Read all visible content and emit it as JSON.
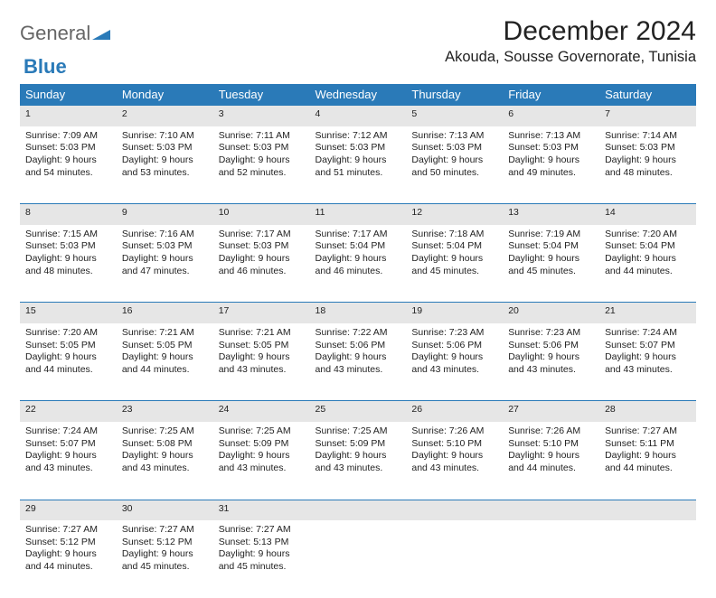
{
  "logo": {
    "prefix": "General",
    "suffix": "Blue"
  },
  "title": "December 2024",
  "location": "Akouda, Sousse Governorate, Tunisia",
  "headers": [
    "Sunday",
    "Monday",
    "Tuesday",
    "Wednesday",
    "Thursday",
    "Friday",
    "Saturday"
  ],
  "colors": {
    "header_bg": "#2a7ab8",
    "header_fg": "#ffffff",
    "daynum_bg": "#e6e6e6",
    "border": "#2a7ab8",
    "page_bg": "#ffffff"
  },
  "weeks": [
    [
      {
        "day": "1",
        "sunrise": "Sunrise: 7:09 AM",
        "sunset": "Sunset: 5:03 PM",
        "daylight": "Daylight: 9 hours and 54 minutes."
      },
      {
        "day": "2",
        "sunrise": "Sunrise: 7:10 AM",
        "sunset": "Sunset: 5:03 PM",
        "daylight": "Daylight: 9 hours and 53 minutes."
      },
      {
        "day": "3",
        "sunrise": "Sunrise: 7:11 AM",
        "sunset": "Sunset: 5:03 PM",
        "daylight": "Daylight: 9 hours and 52 minutes."
      },
      {
        "day": "4",
        "sunrise": "Sunrise: 7:12 AM",
        "sunset": "Sunset: 5:03 PM",
        "daylight": "Daylight: 9 hours and 51 minutes."
      },
      {
        "day": "5",
        "sunrise": "Sunrise: 7:13 AM",
        "sunset": "Sunset: 5:03 PM",
        "daylight": "Daylight: 9 hours and 50 minutes."
      },
      {
        "day": "6",
        "sunrise": "Sunrise: 7:13 AM",
        "sunset": "Sunset: 5:03 PM",
        "daylight": "Daylight: 9 hours and 49 minutes."
      },
      {
        "day": "7",
        "sunrise": "Sunrise: 7:14 AM",
        "sunset": "Sunset: 5:03 PM",
        "daylight": "Daylight: 9 hours and 48 minutes."
      }
    ],
    [
      {
        "day": "8",
        "sunrise": "Sunrise: 7:15 AM",
        "sunset": "Sunset: 5:03 PM",
        "daylight": "Daylight: 9 hours and 48 minutes."
      },
      {
        "day": "9",
        "sunrise": "Sunrise: 7:16 AM",
        "sunset": "Sunset: 5:03 PM",
        "daylight": "Daylight: 9 hours and 47 minutes."
      },
      {
        "day": "10",
        "sunrise": "Sunrise: 7:17 AM",
        "sunset": "Sunset: 5:03 PM",
        "daylight": "Daylight: 9 hours and 46 minutes."
      },
      {
        "day": "11",
        "sunrise": "Sunrise: 7:17 AM",
        "sunset": "Sunset: 5:04 PM",
        "daylight": "Daylight: 9 hours and 46 minutes."
      },
      {
        "day": "12",
        "sunrise": "Sunrise: 7:18 AM",
        "sunset": "Sunset: 5:04 PM",
        "daylight": "Daylight: 9 hours and 45 minutes."
      },
      {
        "day": "13",
        "sunrise": "Sunrise: 7:19 AM",
        "sunset": "Sunset: 5:04 PM",
        "daylight": "Daylight: 9 hours and 45 minutes."
      },
      {
        "day": "14",
        "sunrise": "Sunrise: 7:20 AM",
        "sunset": "Sunset: 5:04 PM",
        "daylight": "Daylight: 9 hours and 44 minutes."
      }
    ],
    [
      {
        "day": "15",
        "sunrise": "Sunrise: 7:20 AM",
        "sunset": "Sunset: 5:05 PM",
        "daylight": "Daylight: 9 hours and 44 minutes."
      },
      {
        "day": "16",
        "sunrise": "Sunrise: 7:21 AM",
        "sunset": "Sunset: 5:05 PM",
        "daylight": "Daylight: 9 hours and 44 minutes."
      },
      {
        "day": "17",
        "sunrise": "Sunrise: 7:21 AM",
        "sunset": "Sunset: 5:05 PM",
        "daylight": "Daylight: 9 hours and 43 minutes."
      },
      {
        "day": "18",
        "sunrise": "Sunrise: 7:22 AM",
        "sunset": "Sunset: 5:06 PM",
        "daylight": "Daylight: 9 hours and 43 minutes."
      },
      {
        "day": "19",
        "sunrise": "Sunrise: 7:23 AM",
        "sunset": "Sunset: 5:06 PM",
        "daylight": "Daylight: 9 hours and 43 minutes."
      },
      {
        "day": "20",
        "sunrise": "Sunrise: 7:23 AM",
        "sunset": "Sunset: 5:06 PM",
        "daylight": "Daylight: 9 hours and 43 minutes."
      },
      {
        "day": "21",
        "sunrise": "Sunrise: 7:24 AM",
        "sunset": "Sunset: 5:07 PM",
        "daylight": "Daylight: 9 hours and 43 minutes."
      }
    ],
    [
      {
        "day": "22",
        "sunrise": "Sunrise: 7:24 AM",
        "sunset": "Sunset: 5:07 PM",
        "daylight": "Daylight: 9 hours and 43 minutes."
      },
      {
        "day": "23",
        "sunrise": "Sunrise: 7:25 AM",
        "sunset": "Sunset: 5:08 PM",
        "daylight": "Daylight: 9 hours and 43 minutes."
      },
      {
        "day": "24",
        "sunrise": "Sunrise: 7:25 AM",
        "sunset": "Sunset: 5:09 PM",
        "daylight": "Daylight: 9 hours and 43 minutes."
      },
      {
        "day": "25",
        "sunrise": "Sunrise: 7:25 AM",
        "sunset": "Sunset: 5:09 PM",
        "daylight": "Daylight: 9 hours and 43 minutes."
      },
      {
        "day": "26",
        "sunrise": "Sunrise: 7:26 AM",
        "sunset": "Sunset: 5:10 PM",
        "daylight": "Daylight: 9 hours and 43 minutes."
      },
      {
        "day": "27",
        "sunrise": "Sunrise: 7:26 AM",
        "sunset": "Sunset: 5:10 PM",
        "daylight": "Daylight: 9 hours and 44 minutes."
      },
      {
        "day": "28",
        "sunrise": "Sunrise: 7:27 AM",
        "sunset": "Sunset: 5:11 PM",
        "daylight": "Daylight: 9 hours and 44 minutes."
      }
    ],
    [
      {
        "day": "29",
        "sunrise": "Sunrise: 7:27 AM",
        "sunset": "Sunset: 5:12 PM",
        "daylight": "Daylight: 9 hours and 44 minutes."
      },
      {
        "day": "30",
        "sunrise": "Sunrise: 7:27 AM",
        "sunset": "Sunset: 5:12 PM",
        "daylight": "Daylight: 9 hours and 45 minutes."
      },
      {
        "day": "31",
        "sunrise": "Sunrise: 7:27 AM",
        "sunset": "Sunset: 5:13 PM",
        "daylight": "Daylight: 9 hours and 45 minutes."
      },
      null,
      null,
      null,
      null
    ]
  ]
}
